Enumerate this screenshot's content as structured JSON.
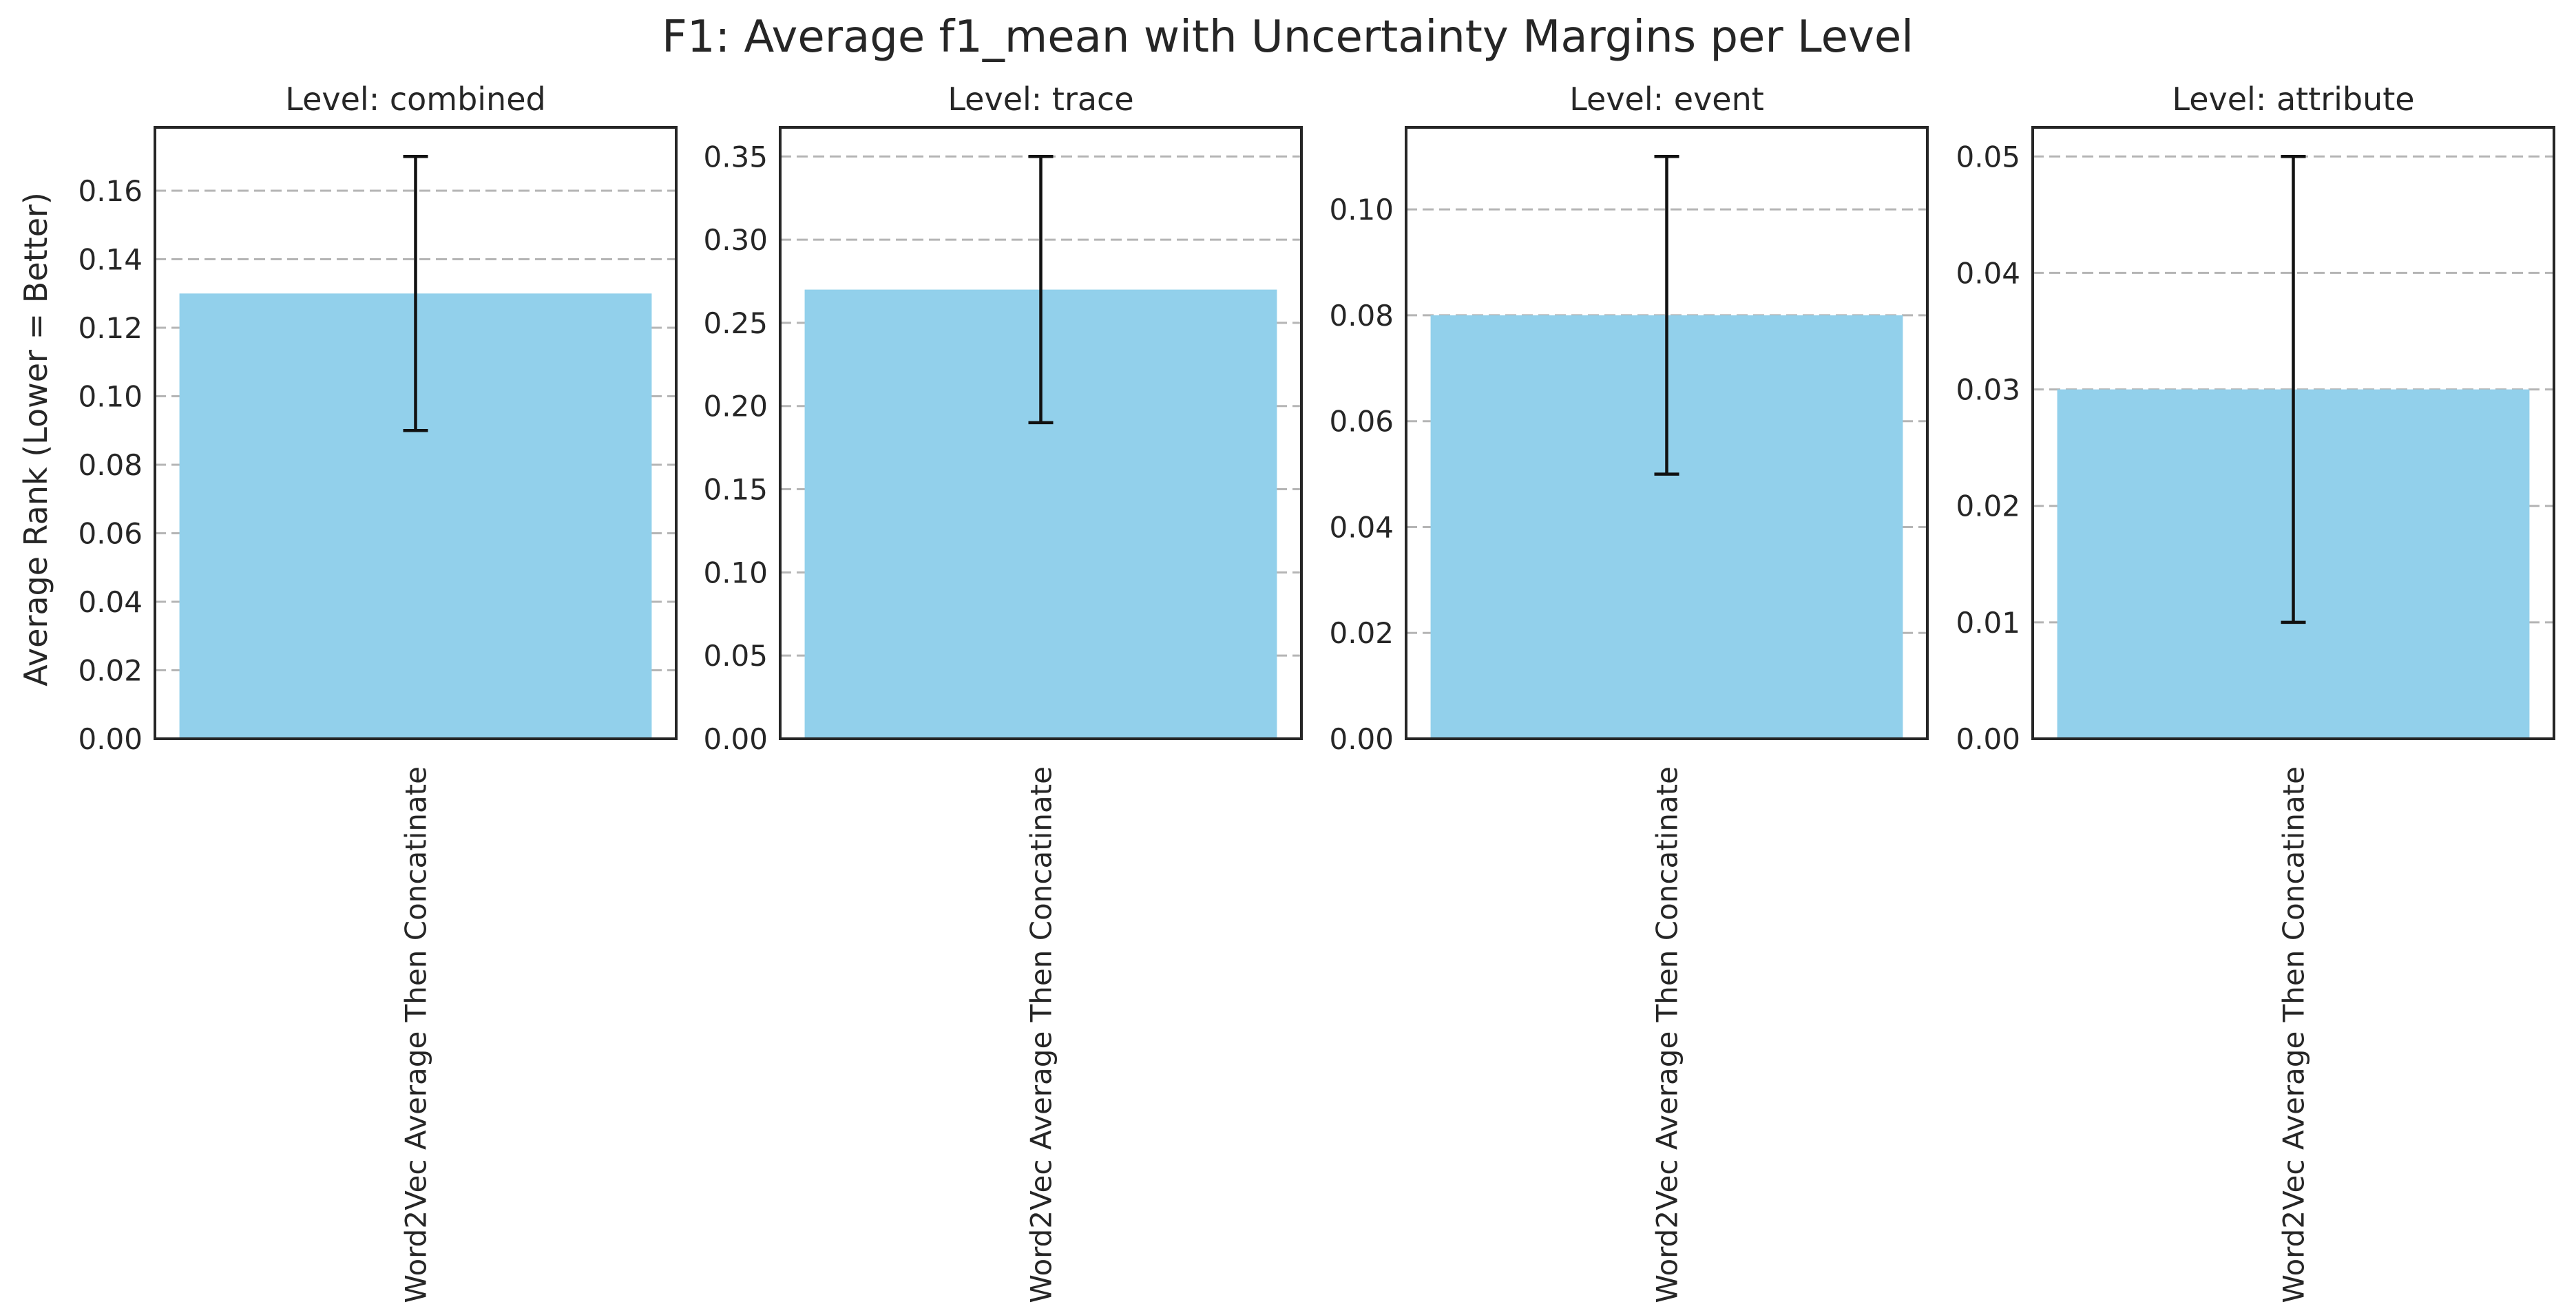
{
  "chart_data": {
    "type": "bar",
    "title": "F1: Average f1_mean with Uncertainty Margins per Level",
    "ylabel": "Average Rank (Lower = Better)",
    "bar_color": "#92d0eb",
    "grid": true,
    "panels": [
      {
        "title": "Level: combined",
        "categories": [
          "Word2Vec Average Then Concatinate"
        ],
        "values": [
          0.13
        ],
        "error_low": [
          0.09
        ],
        "error_high": [
          0.17
        ],
        "ylim": [
          0,
          0.1785
        ],
        "yticks": [
          0.0,
          0.02,
          0.04,
          0.06,
          0.08,
          0.1,
          0.12,
          0.14,
          0.16
        ],
        "ytick_labels": [
          "0.00",
          "0.02",
          "0.04",
          "0.06",
          "0.08",
          "0.10",
          "0.12",
          "0.14",
          "0.16"
        ]
      },
      {
        "title": "Level: trace",
        "categories": [
          "Word2Vec Average Then Concatinate"
        ],
        "values": [
          0.27
        ],
        "error_low": [
          0.19
        ],
        "error_high": [
          0.35
        ],
        "ylim": [
          0,
          0.3675
        ],
        "yticks": [
          0.0,
          0.05,
          0.1,
          0.15,
          0.2,
          0.25,
          0.3,
          0.35
        ],
        "ytick_labels": [
          "0.00",
          "0.05",
          "0.10",
          "0.15",
          "0.20",
          "0.25",
          "0.30",
          "0.35"
        ]
      },
      {
        "title": "Level: event",
        "categories": [
          "Word2Vec Average Then Concatinate"
        ],
        "values": [
          0.08
        ],
        "error_low": [
          0.05
        ],
        "error_high": [
          0.11
        ],
        "ylim": [
          0,
          0.1155
        ],
        "yticks": [
          0.0,
          0.02,
          0.04,
          0.06,
          0.08,
          0.1
        ],
        "ytick_labels": [
          "0.00",
          "0.02",
          "0.04",
          "0.06",
          "0.08",
          "0.10"
        ]
      },
      {
        "title": "Level: attribute",
        "categories": [
          "Word2Vec Average Then Concatinate"
        ],
        "values": [
          0.03
        ],
        "error_low": [
          0.01
        ],
        "error_high": [
          0.05
        ],
        "ylim": [
          0,
          0.0525
        ],
        "yticks": [
          0.0,
          0.01,
          0.02,
          0.03,
          0.04,
          0.05
        ],
        "ytick_labels": [
          "0.00",
          "0.01",
          "0.02",
          "0.03",
          "0.04",
          "0.05"
        ]
      }
    ]
  }
}
